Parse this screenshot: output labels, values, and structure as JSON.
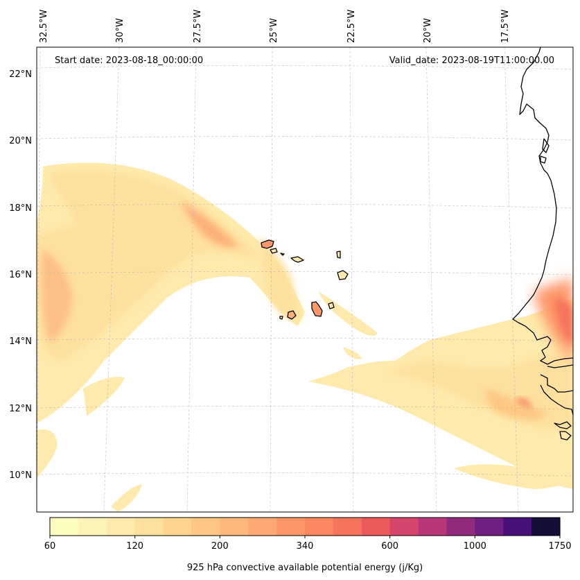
{
  "header": {
    "start_date": "Start date: 2023-08-18_00:00:00",
    "valid_date": "Valid_date: 2023-08-19T11:00:00.00"
  },
  "longitude_labels": [
    "32.5°W",
    "30°W",
    "27.5°W",
    "25°W",
    "22.5°W",
    "20°W",
    "17.5°W"
  ],
  "latitude_labels": [
    "22°N",
    "20°N",
    "18°N",
    "16°N",
    "14°N",
    "12°N",
    "10°N"
  ],
  "colorbar": {
    "label": "925 hPa convective available potential energy (j/Kg)",
    "ticks": [
      "60",
      "120",
      "200",
      "340",
      "600",
      "1000",
      "1750"
    ],
    "colors": [
      "#fcfdbf",
      "#fdf4b8",
      "#feeaac",
      "#fee09e",
      "#fed48f",
      "#fec783",
      "#feb87a",
      "#fea873",
      "#fd9668",
      "#fb8761",
      "#f6735c",
      "#ec5a5a",
      "#d6456c",
      "#b73779",
      "#922a7e",
      "#6e1f81",
      "#4a1079",
      "#150e37"
    ]
  },
  "map": {
    "land_color": "#ffffff",
    "coastline_color": "#000000",
    "gridline_style": "dashed light gray"
  }
}
